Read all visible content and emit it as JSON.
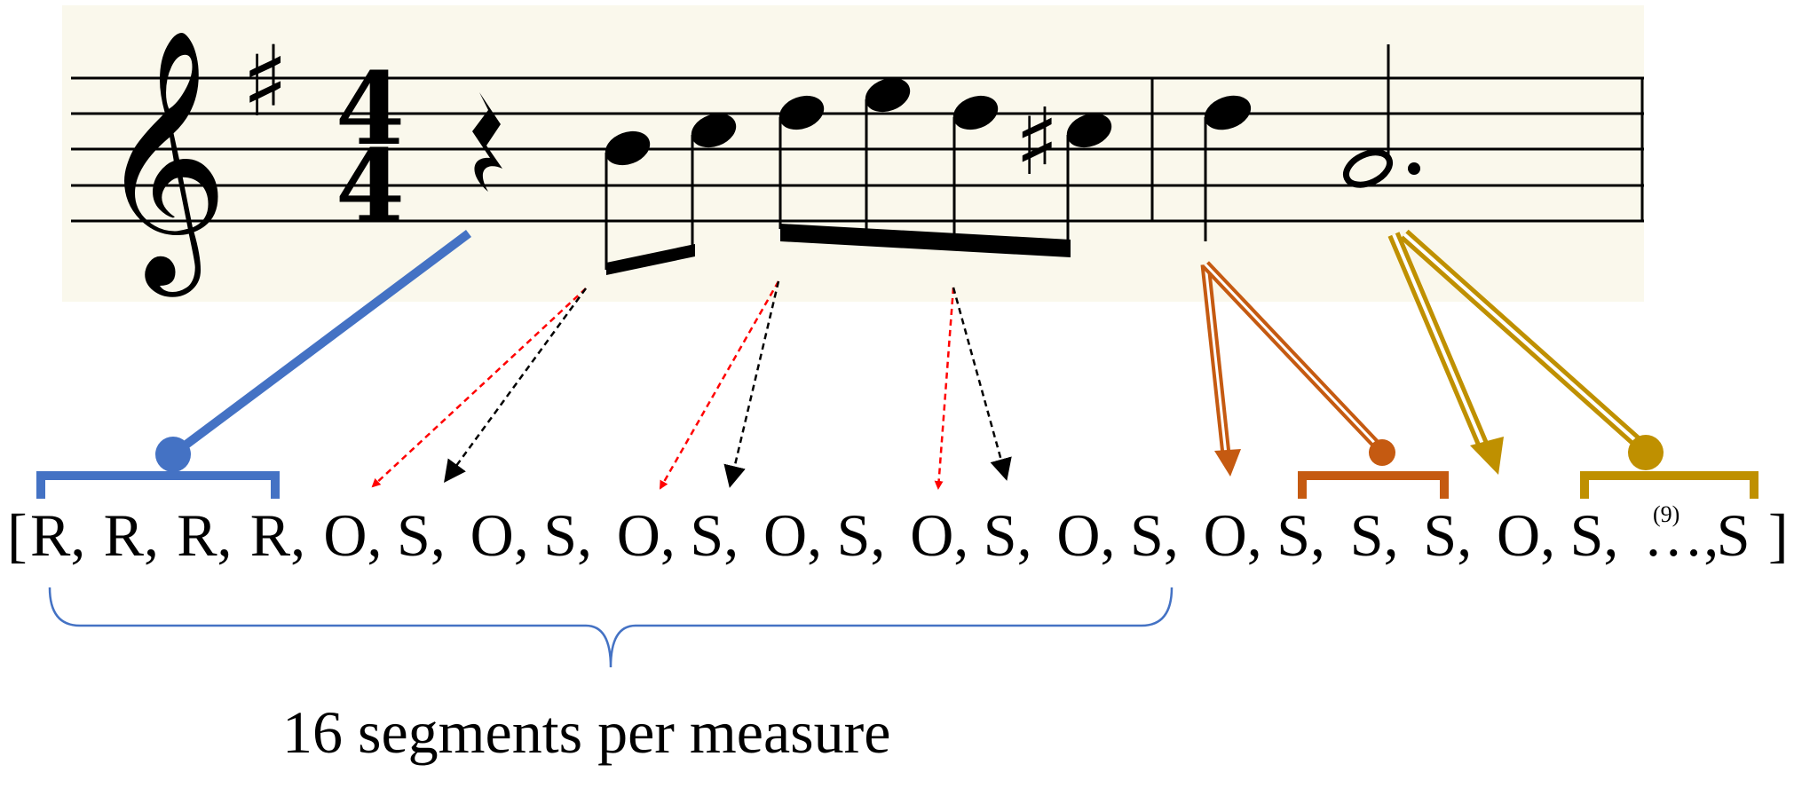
{
  "sheet": {
    "background_color": "#faf8ec",
    "key_signature": "♯",
    "time_signature": {
      "top": "4",
      "bottom": "4"
    }
  },
  "sequence": {
    "open_bracket": "[",
    "close_bracket": "]",
    "tokens": [
      "R",
      "R",
      "R",
      "R",
      "O",
      "S",
      "O",
      "S",
      "O",
      "S",
      "O",
      "S",
      "O",
      "S",
      "O",
      "S",
      "O",
      "S",
      "S",
      "S",
      "O",
      "S",
      "…",
      "S"
    ],
    "separator": ", ",
    "ellipsis_note": "(9)"
  },
  "caption": {
    "text": "16 segments per measure"
  },
  "colors": {
    "rest_mapping": "#4472c4",
    "onset_arrow": "#ff0000",
    "sustain_arrow": "#000000",
    "quarter_mapping": "#c55a11",
    "dotted_half_mapping": "#bf9000",
    "measure_brace": "#4472c4"
  },
  "icons": [
    "treble-clef-icon",
    "sharp-icon",
    "quarter-rest-icon"
  ]
}
